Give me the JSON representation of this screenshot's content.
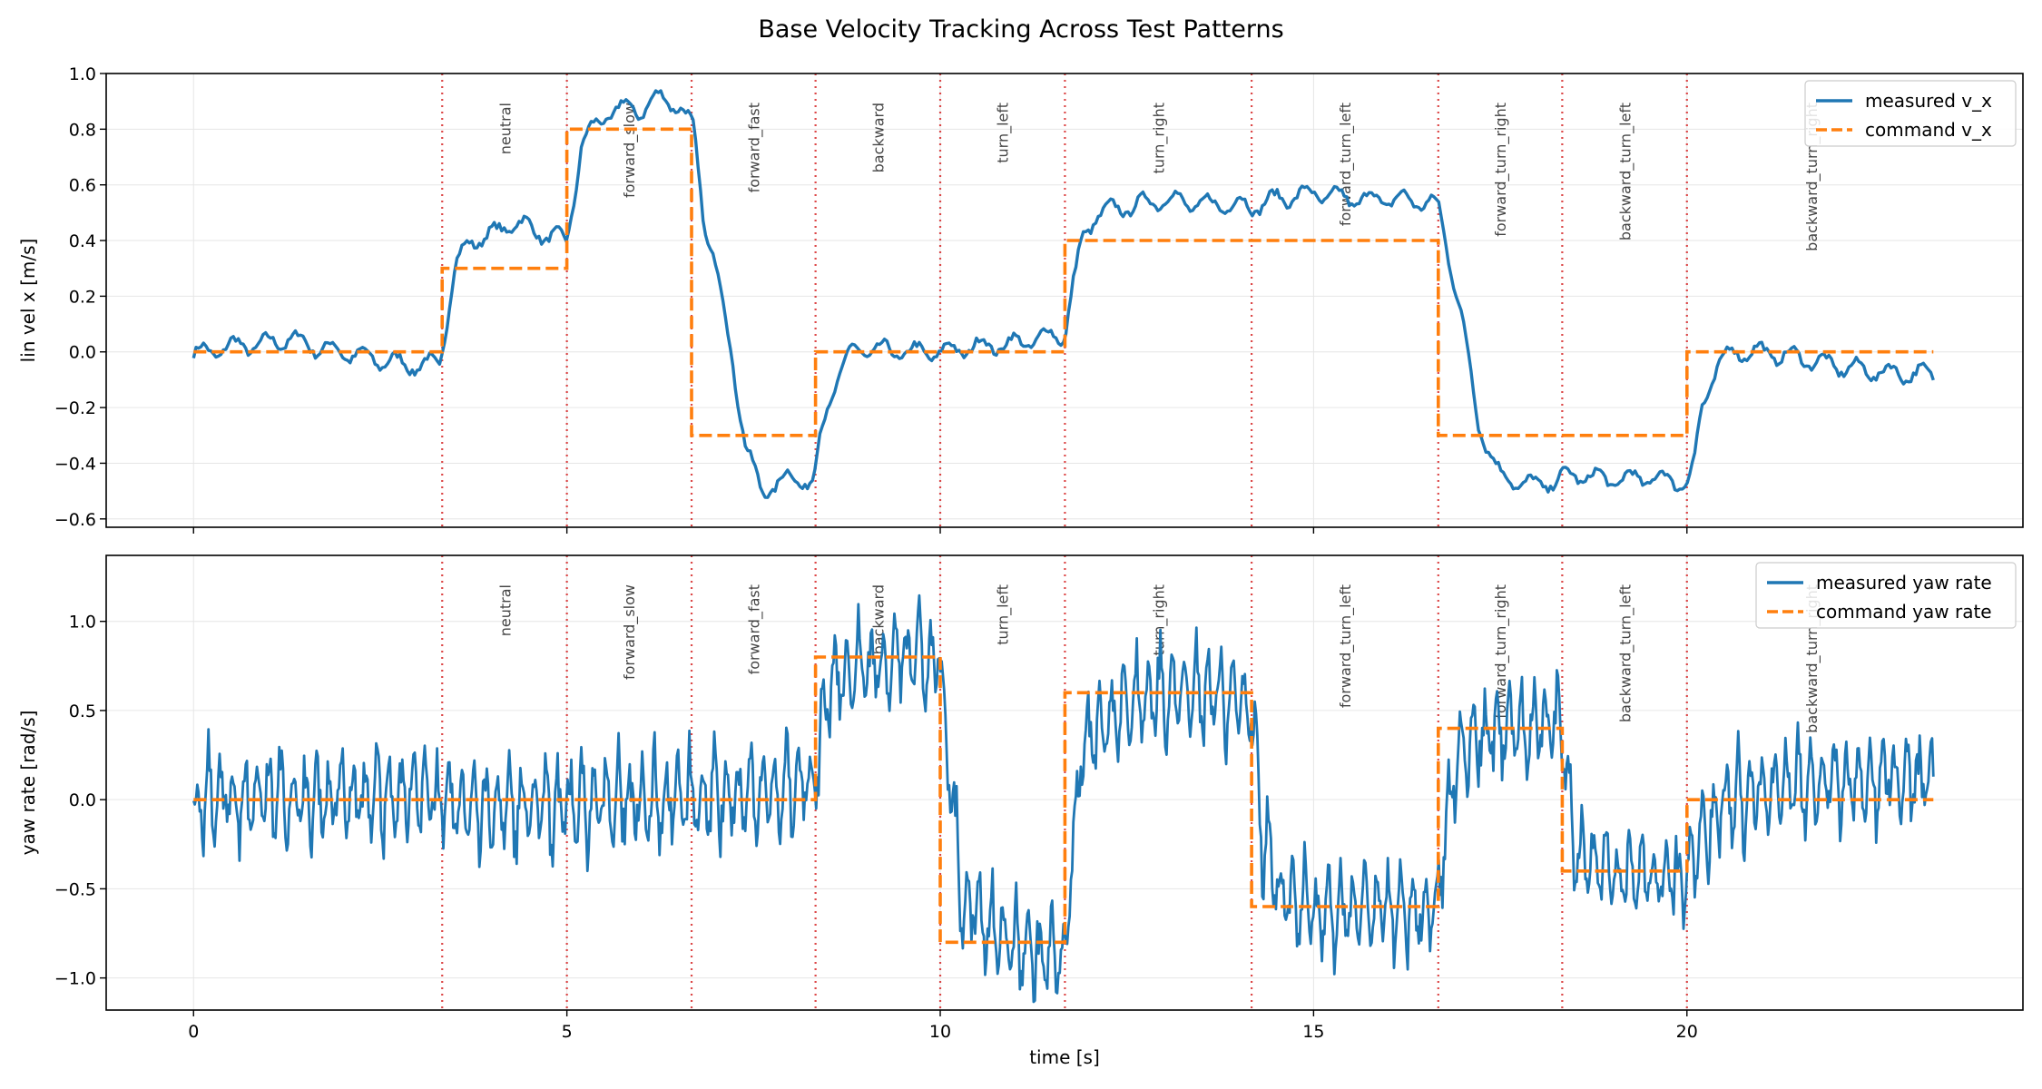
{
  "title": "Base Velocity Tracking Across Test Patterns",
  "colors": {
    "measured": "#1f77b4",
    "command": "#ff7f0e",
    "boundary": "#d62728",
    "grid": "#e6e6e6"
  },
  "chart_data": [
    {
      "type": "line",
      "panel": "top",
      "ylabel": "lin vel x [m/s]",
      "xlim": [
        -1.17,
        24.5
      ],
      "ylim": [
        -0.63,
        1.0
      ],
      "yticks": [
        -0.6,
        -0.4,
        -0.2,
        0.0,
        0.2,
        0.4,
        0.6,
        0.8,
        1.0
      ],
      "ytick_labels": [
        "−0.6",
        "−0.4",
        "−0.2",
        "0.0",
        "0.2",
        "0.4",
        "0.6",
        "0.8",
        "1.0"
      ],
      "grid": true,
      "legend": "top-right",
      "series": [
        {
          "name": "measured v_x",
          "style": "solid",
          "x": [
            0,
            0.5,
            1,
            1.3,
            1.6,
            2,
            2.5,
            3,
            3.3,
            3.35,
            3.5,
            3.7,
            4,
            4.3,
            4.6,
            5,
            5.05,
            5.2,
            5.5,
            5.8,
            6,
            6.3,
            6.5,
            6.7,
            6.85,
            7,
            7.2,
            7.4,
            7.6,
            8,
            8.3,
            8.4,
            8.6,
            8.8,
            9,
            9.5,
            10,
            10.5,
            11,
            11.5,
            11.67,
            11.75,
            11.9,
            12.1,
            12.5,
            13,
            13.5,
            14,
            14.17,
            14.5,
            15,
            15.5,
            16,
            16.5,
            16.67,
            16.85,
            17,
            17.2,
            17.5,
            18,
            18.5,
            19,
            19.5,
            20,
            20.1,
            20.2,
            20.4,
            20.6,
            21,
            21.5,
            22,
            22.5,
            23,
            23.3
          ],
          "y": [
            -0.01,
            0.02,
            0.03,
            0.05,
            0.02,
            0.0,
            -0.03,
            -0.05,
            -0.04,
            0.05,
            0.3,
            0.4,
            0.42,
            0.47,
            0.43,
            0.4,
            0.48,
            0.75,
            0.85,
            0.88,
            0.87,
            0.92,
            0.88,
            0.8,
            0.45,
            0.3,
            0.0,
            -0.35,
            -0.5,
            -0.45,
            -0.47,
            -0.3,
            -0.1,
            0.0,
            0.01,
            0.0,
            0.0,
            0.02,
            0.03,
            0.06,
            0.06,
            0.2,
            0.4,
            0.5,
            0.52,
            0.55,
            0.53,
            0.53,
            0.52,
            0.55,
            0.57,
            0.55,
            0.55,
            0.54,
            0.52,
            0.3,
            0.1,
            -0.25,
            -0.45,
            -0.48,
            -0.44,
            -0.46,
            -0.45,
            -0.47,
            -0.4,
            -0.2,
            -0.05,
            0.0,
            0.0,
            -0.02,
            -0.05,
            -0.07,
            -0.08,
            -0.08
          ]
        },
        {
          "name": "command v_x",
          "style": "dashed",
          "x": [
            0,
            3.33,
            3.33,
            5.0,
            5.0,
            6.67,
            6.67,
            8.33,
            8.33,
            11.67,
            11.67,
            16.67,
            16.67,
            20.0,
            20.0,
            23.3
          ],
          "y": [
            0,
            0,
            0.3,
            0.3,
            0.8,
            0.8,
            -0.3,
            -0.3,
            0,
            0,
            0.4,
            0.4,
            -0.3,
            -0.3,
            0,
            0
          ]
        }
      ]
    },
    {
      "type": "line",
      "panel": "bottom",
      "ylabel": "yaw rate [rad/s]",
      "xlabel": "time [s]",
      "xlim": [
        -1.17,
        24.5
      ],
      "ylim": [
        -1.18,
        1.37
      ],
      "yticks": [
        -1.0,
        -0.5,
        0.0,
        0.5,
        1.0
      ],
      "ytick_labels": [
        "−1.0",
        "−0.5",
        "0.0",
        "0.5",
        "1.0"
      ],
      "xticks": [
        0,
        5,
        10,
        15,
        20
      ],
      "xtick_labels": [
        "0",
        "5",
        "10",
        "15",
        "20"
      ],
      "grid": true,
      "legend": "top-right",
      "series": [
        {
          "name": "measured yaw rate",
          "style": "solid",
          "noise_amplitude": 0.3,
          "x": [
            0,
            1,
            2,
            3,
            3.33,
            4,
            5,
            6,
            7,
            8,
            8.33,
            8.5,
            9,
            9.5,
            10,
            10.1,
            10.3,
            11,
            11.67,
            11.75,
            11.9,
            12.5,
            13,
            14,
            14.17,
            14.3,
            14.6,
            15,
            16,
            16.67,
            16.8,
            17,
            17.5,
            18,
            18.33,
            18.5,
            19,
            20,
            20.1,
            20.5,
            21,
            22,
            23.3
          ],
          "y": [
            0,
            0.02,
            0,
            0.05,
            0,
            -0.05,
            -0.02,
            0,
            0.02,
            0.05,
            0.1,
            0.65,
            0.75,
            0.8,
            0.78,
            0.3,
            -0.6,
            -0.82,
            -0.9,
            -0.4,
            0.3,
            0.55,
            0.6,
            0.55,
            0.5,
            -0.2,
            -0.55,
            -0.6,
            -0.62,
            -0.65,
            0,
            0.3,
            0.4,
            0.42,
            0.45,
            -0.3,
            -0.42,
            -0.45,
            -0.3,
            0,
            0.05,
            0.1,
            0.12
          ]
        },
        {
          "name": "command yaw rate",
          "style": "dashed",
          "x": [
            0,
            8.33,
            8.33,
            10.0,
            10.0,
            11.67,
            11.67,
            14.17,
            14.17,
            16.67,
            16.67,
            18.33,
            18.33,
            20.0,
            20.0,
            23.3
          ],
          "y": [
            0,
            0,
            0.8,
            0.8,
            -0.8,
            -0.8,
            0.6,
            0.6,
            -0.6,
            -0.6,
            0.4,
            0.4,
            -0.4,
            -0.4,
            0,
            0
          ]
        }
      ]
    }
  ],
  "segment_boundaries": [
    3.33,
    5.0,
    6.67,
    8.33,
    10.0,
    11.67,
    14.17,
    16.67,
    18.33,
    20.0
  ],
  "segment_labels": [
    {
      "x": 4.17,
      "label": "neutral"
    },
    {
      "x": 5.83,
      "label": "forward_slow"
    },
    {
      "x": 7.5,
      "label": "forward_fast"
    },
    {
      "x": 9.17,
      "label": "backward"
    },
    {
      "x": 10.83,
      "label": "turn_left"
    },
    {
      "x": 12.92,
      "label": "turn_right"
    },
    {
      "x": 15.42,
      "label": "forward_turn_left"
    },
    {
      "x": 17.5,
      "label": "forward_turn_right"
    },
    {
      "x": 19.17,
      "label": "backward_turn_left"
    },
    {
      "x": 21.67,
      "label": "backward_turn_right"
    }
  ]
}
